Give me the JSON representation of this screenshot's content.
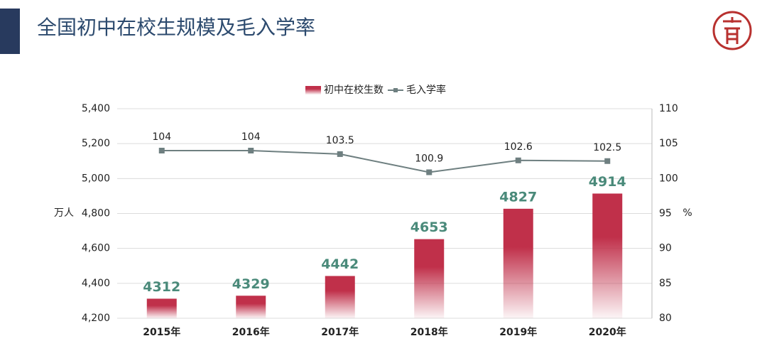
{
  "chart_data": {
    "type": "bar_line",
    "title": "全国初中在校生规模及毛入学率",
    "categories": [
      "2015年",
      "2016年",
      "2017年",
      "2018年",
      "2019年",
      "2020年"
    ],
    "series": [
      {
        "name": "初中在校生数",
        "type": "bar",
        "color": "#c0304a",
        "values": [
          4312,
          4329,
          4442,
          4653,
          4827,
          4914
        ],
        "label_color": "#4a8a7a"
      },
      {
        "name": "毛入学率",
        "type": "line",
        "axis": "y2",
        "color": "#6e7f80",
        "values": [
          104,
          104,
          103.5,
          100.9,
          102.6,
          102.5
        ]
      }
    ],
    "y_label": "万人",
    "y2_label": "%",
    "ylim": [
      4200,
      5400
    ],
    "yticks": [
      {
        "value": 4200,
        "label": "4,200"
      },
      {
        "value": 4400,
        "label": "4,400"
      },
      {
        "value": 4600,
        "label": "4,600"
      },
      {
        "value": 4800,
        "label": "4,800"
      },
      {
        "value": 5000,
        "label": "5,000"
      },
      {
        "value": 5200,
        "label": "5,200"
      },
      {
        "value": 5400,
        "label": "5,400"
      }
    ],
    "y2lim": [
      80,
      110
    ],
    "y2ticks": [
      80,
      85,
      90,
      95,
      100,
      105,
      110
    ],
    "grid": true,
    "legend": "top"
  }
}
